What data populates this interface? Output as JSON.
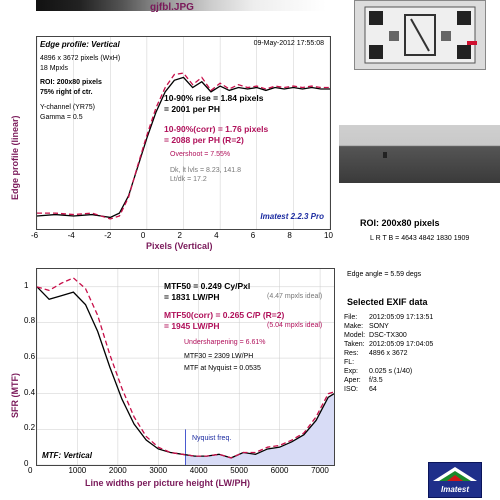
{
  "file_title": "gjfbl.JPG",
  "top_panel": {
    "heading": "Edge profile: Vertical",
    "date": "09-May-2012 17:55:08",
    "pixels": "4896 x 3672 pixels (WxH)",
    "mpxls": "18 Mpxls",
    "roi": "ROI: 200x80 pixels",
    "roi_pos": "75% right of ctr.",
    "channel": "Y-channel (YR75)",
    "gamma": "Gamma = 0.5",
    "rise1": "10-90% rise = 1.84 pixels",
    "rise2": "= 2001 per PH",
    "corr1": "10-90%(corr) = 1.76 pixels",
    "corr2": "= 2088 per PH  (R=2)",
    "overshoot": "Overshoot = 7.55%",
    "dk": "Dk, lt lvls = 8.23, 141.8",
    "ltdk": "Lt/dk = 17.2",
    "brand": "Imatest 2.2.3 Pro"
  },
  "bottom_panel": {
    "heading": "MTF: Vertical",
    "mtf50": "MTF50 = 0.249 Cy/Pxl",
    "mtf50_lw": "= 1831 LW/PH",
    "ideal1": "(4.47 mpxls ideal)",
    "mtf50c": "MTF50(corr) = 0.265 C/P  (R=2)",
    "mtf50c_lw": "= 1945 LW/PH",
    "ideal2": "(5.04 mpxls ideal)",
    "under": "Undersharpening = 6.61%",
    "mtf30": "MTF30 = 2309 LW/PH",
    "nyq": "MTF at Nyquist = 0.0535",
    "nyq_label": "Nyquist freq."
  },
  "side": {
    "roi": "ROI: 200x80 pixels",
    "lrtb": "L R T B = 4643 4842  1830 1909",
    "edge": "Edge angle = 5.59 degs",
    "exif_title": "Selected EXIF data",
    "exif": [
      [
        "File:",
        "2012:05:09 17:13:51"
      ],
      [
        "Make:",
        "SONY"
      ],
      [
        "Model:",
        "DSC-TX300"
      ],
      [
        "Taken:",
        "2012:05:09 17:04:05"
      ],
      [
        "Res:",
        "4896 x 3672"
      ],
      [
        "FL:",
        ""
      ],
      [
        "Exp:",
        "0.025 s  (1/40)"
      ],
      [
        "Aper:",
        "f/3.5"
      ],
      [
        "ISO:",
        "64"
      ]
    ],
    "logo": "Imatest"
  },
  "chart_data": [
    {
      "type": "line",
      "xlabel": "Pixels (Vertical)",
      "ylabel": "Edge profile (linear)",
      "xlim": [
        -6,
        10
      ],
      "x_ticks": [
        -6,
        -4,
        -2,
        0,
        2,
        4,
        6,
        8,
        10
      ],
      "series": [
        {
          "name": "",
          "color": "#000000",
          "x": [
            -6,
            -5,
            -4,
            -3,
            -2.5,
            -2,
            -1.5,
            -1,
            -0.5,
            0,
            0.5,
            1,
            1.5,
            2,
            2.5,
            3,
            3.5,
            4,
            4.5,
            5,
            5.5,
            6,
            6.5,
            7,
            7.5,
            8,
            8.5,
            9,
            9.5,
            10
          ],
          "y": [
            0.04,
            0.05,
            0.04,
            0.05,
            0.04,
            0.03,
            0.06,
            0.18,
            0.38,
            0.58,
            0.76,
            0.9,
            0.98,
            1.0,
            0.93,
            0.97,
            0.9,
            0.94,
            0.91,
            0.93,
            0.92,
            0.93,
            0.91,
            0.93,
            0.92,
            0.93,
            0.92,
            0.93,
            0.92,
            0.92
          ]
        },
        {
          "name": "",
          "color": "#c8104a",
          "x": [
            -6,
            -5,
            -4,
            -3,
            -2.5,
            -2,
            -1.5,
            -1,
            -0.5,
            0,
            0.5,
            1,
            1.5,
            2,
            2.5,
            3,
            3.5,
            4,
            4.5,
            5,
            5.5,
            6,
            6.5,
            7,
            7.5,
            8,
            8.5,
            9,
            9.5,
            10
          ],
          "y": [
            0.06,
            0.06,
            0.05,
            0.06,
            0.04,
            0.02,
            0.04,
            0.17,
            0.39,
            0.6,
            0.79,
            0.93,
            1.02,
            1.03,
            0.95,
            1.0,
            0.91,
            0.96,
            0.92,
            0.95,
            0.93,
            0.94,
            0.92,
            0.94,
            0.93,
            0.94,
            0.93,
            0.94,
            0.93,
            0.93
          ]
        }
      ]
    },
    {
      "type": "line",
      "xlabel": "Line widths per picture height (LW/PH)",
      "ylabel": "SFR (MTF)",
      "xlim": [
        0,
        7344
      ],
      "ylim": [
        0,
        1.1
      ],
      "x_ticks": [
        0,
        1000,
        2000,
        3000,
        4000,
        5000,
        6000,
        7000
      ],
      "y_ticks": [
        0,
        0.2,
        0.4,
        0.6,
        0.8,
        1
      ],
      "nyquist_x": 3672,
      "series": [
        {
          "name": "",
          "color": "#000000",
          "x": [
            0,
            300,
            600,
            900,
            1200,
            1500,
            1800,
            2100,
            2400,
            2700,
            3000,
            3300,
            3600,
            3900,
            4200,
            4500,
            4800,
            5100,
            5400,
            5700,
            6000,
            6300,
            6600,
            6900,
            7200,
            7344
          ],
          "y": [
            1.0,
            0.93,
            0.95,
            0.97,
            0.9,
            0.75,
            0.55,
            0.37,
            0.23,
            0.14,
            0.09,
            0.07,
            0.06,
            0.05,
            0.05,
            0.06,
            0.04,
            0.07,
            0.06,
            0.09,
            0.1,
            0.13,
            0.17,
            0.25,
            0.38,
            0.4
          ]
        },
        {
          "name": "",
          "color": "#c8104a",
          "x": [
            0,
            300,
            600,
            900,
            1200,
            1500,
            1800,
            2100,
            2400,
            2700,
            3000,
            3300,
            3600,
            3900,
            4200,
            4500,
            4800,
            5100,
            5400,
            5700,
            6000,
            6300,
            6600,
            6900,
            7200,
            7344
          ],
          "y": [
            1.0,
            0.98,
            1.02,
            1.05,
            0.99,
            0.84,
            0.62,
            0.43,
            0.27,
            0.16,
            0.1,
            0.07,
            0.06,
            0.05,
            0.05,
            0.06,
            0.04,
            0.07,
            0.07,
            0.1,
            0.11,
            0.14,
            0.18,
            0.27,
            0.4,
            0.41
          ]
        }
      ]
    }
  ]
}
